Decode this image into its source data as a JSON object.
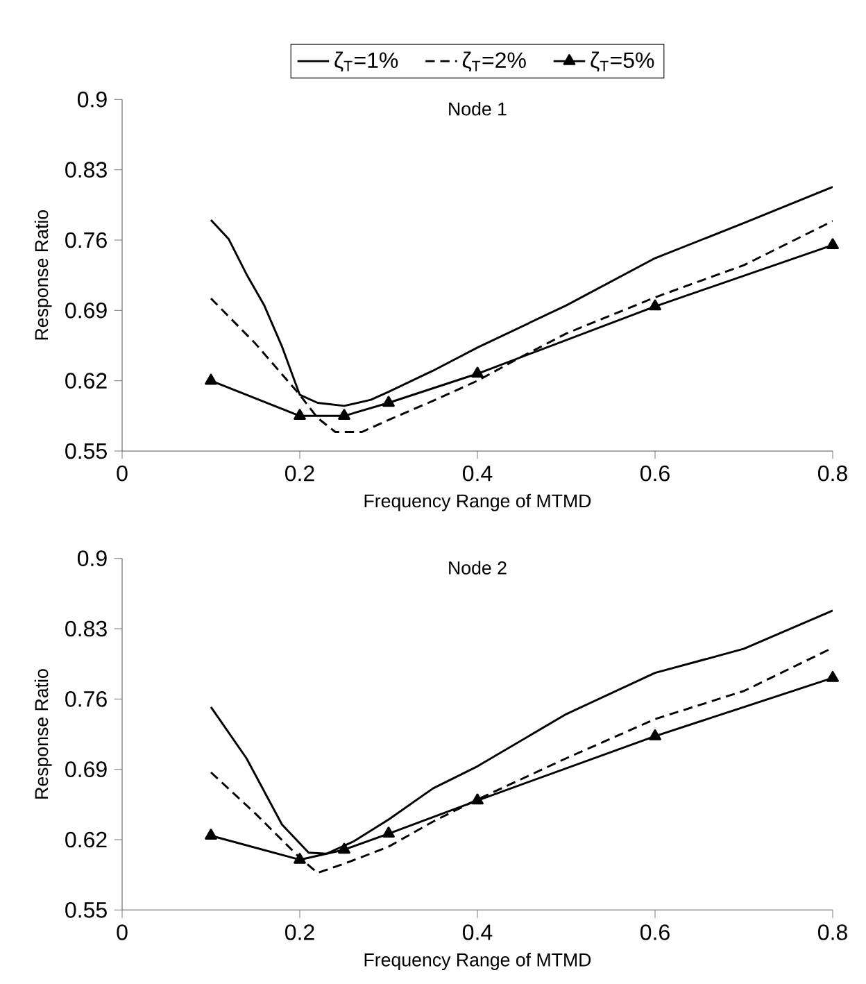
{
  "chart_data": [
    {
      "type": "line",
      "title": "Node 1",
      "xlabel": "Frequency Range of MTMD",
      "ylabel": "Response Ratio",
      "xlim": [
        0,
        0.8
      ],
      "xticks": [
        0,
        0.2,
        0.4,
        0.6,
        0.8
      ],
      "ylim": [
        0.55,
        0.9
      ],
      "yticks": [
        0.55,
        0.62,
        0.69,
        0.76,
        0.83,
        0.9
      ],
      "grid": false,
      "legend": "top",
      "series": [
        {
          "name": "ζ$_{T}$=1%",
          "color": "#000000",
          "line_style": "solid",
          "marker": "none",
          "x": [
            0.1,
            0.12,
            0.14,
            0.16,
            0.18,
            0.2,
            0.22,
            0.25,
            0.28,
            0.3,
            0.35,
            0.4,
            0.5,
            0.6,
            0.7,
            0.8
          ],
          "values": [
            0.78,
            0.761,
            0.726,
            0.695,
            0.654,
            0.606,
            0.598,
            0.595,
            0.601,
            0.609,
            0.63,
            0.653,
            0.695,
            0.742,
            0.777,
            0.813
          ]
        },
        {
          "name": "ζ$_{T}$=2%",
          "color": "#000000",
          "line_style": "dashed",
          "marker": "none",
          "x": [
            0.1,
            0.15,
            0.2,
            0.22,
            0.24,
            0.27,
            0.3,
            0.35,
            0.4,
            0.45,
            0.5,
            0.6,
            0.7,
            0.8
          ],
          "values": [
            0.702,
            0.657,
            0.606,
            0.583,
            0.569,
            0.569,
            0.581,
            0.6,
            0.62,
            0.644,
            0.667,
            0.703,
            0.735,
            0.779
          ]
        },
        {
          "name": "ζ$_{T}$=5%",
          "color": "#000000",
          "line_style": "solid",
          "marker": "triangle",
          "x": [
            0.1,
            0.2,
            0.25,
            0.3,
            0.4,
            0.6,
            0.8
          ],
          "values": [
            0.62,
            0.585,
            0.585,
            0.598,
            0.627,
            0.694,
            0.755
          ]
        }
      ]
    },
    {
      "type": "line",
      "title": "Node 2",
      "xlabel": "Frequency Range of MTMD",
      "ylabel": "Response Ratio",
      "xlim": [
        0,
        0.8
      ],
      "xticks": [
        0,
        0.2,
        0.4,
        0.6,
        0.8
      ],
      "ylim": [
        0.55,
        0.9
      ],
      "yticks": [
        0.55,
        0.62,
        0.69,
        0.76,
        0.83,
        0.9
      ],
      "grid": false,
      "series": [
        {
          "color": "#000000",
          "line_style": "solid",
          "marker": "none",
          "x": [
            0.1,
            0.14,
            0.18,
            0.21,
            0.23,
            0.26,
            0.3,
            0.35,
            0.4,
            0.5,
            0.6,
            0.7,
            0.8
          ],
          "values": [
            0.752,
            0.701,
            0.635,
            0.607,
            0.606,
            0.618,
            0.64,
            0.671,
            0.693,
            0.745,
            0.786,
            0.81,
            0.848
          ]
        },
        {
          "color": "#000000",
          "line_style": "dashed",
          "marker": "none",
          "x": [
            0.1,
            0.15,
            0.2,
            0.22,
            0.25,
            0.3,
            0.35,
            0.4,
            0.5,
            0.6,
            0.7,
            0.8
          ],
          "values": [
            0.687,
            0.646,
            0.602,
            0.587,
            0.596,
            0.613,
            0.638,
            0.66,
            0.701,
            0.74,
            0.768,
            0.811
          ]
        },
        {
          "color": "#000000",
          "line_style": "solid",
          "marker": "triangle",
          "x": [
            0.1,
            0.2,
            0.25,
            0.3,
            0.4,
            0.6,
            0.8
          ],
          "values": [
            0.624,
            0.6,
            0.61,
            0.626,
            0.659,
            0.723,
            0.781
          ]
        }
      ]
    }
  ]
}
